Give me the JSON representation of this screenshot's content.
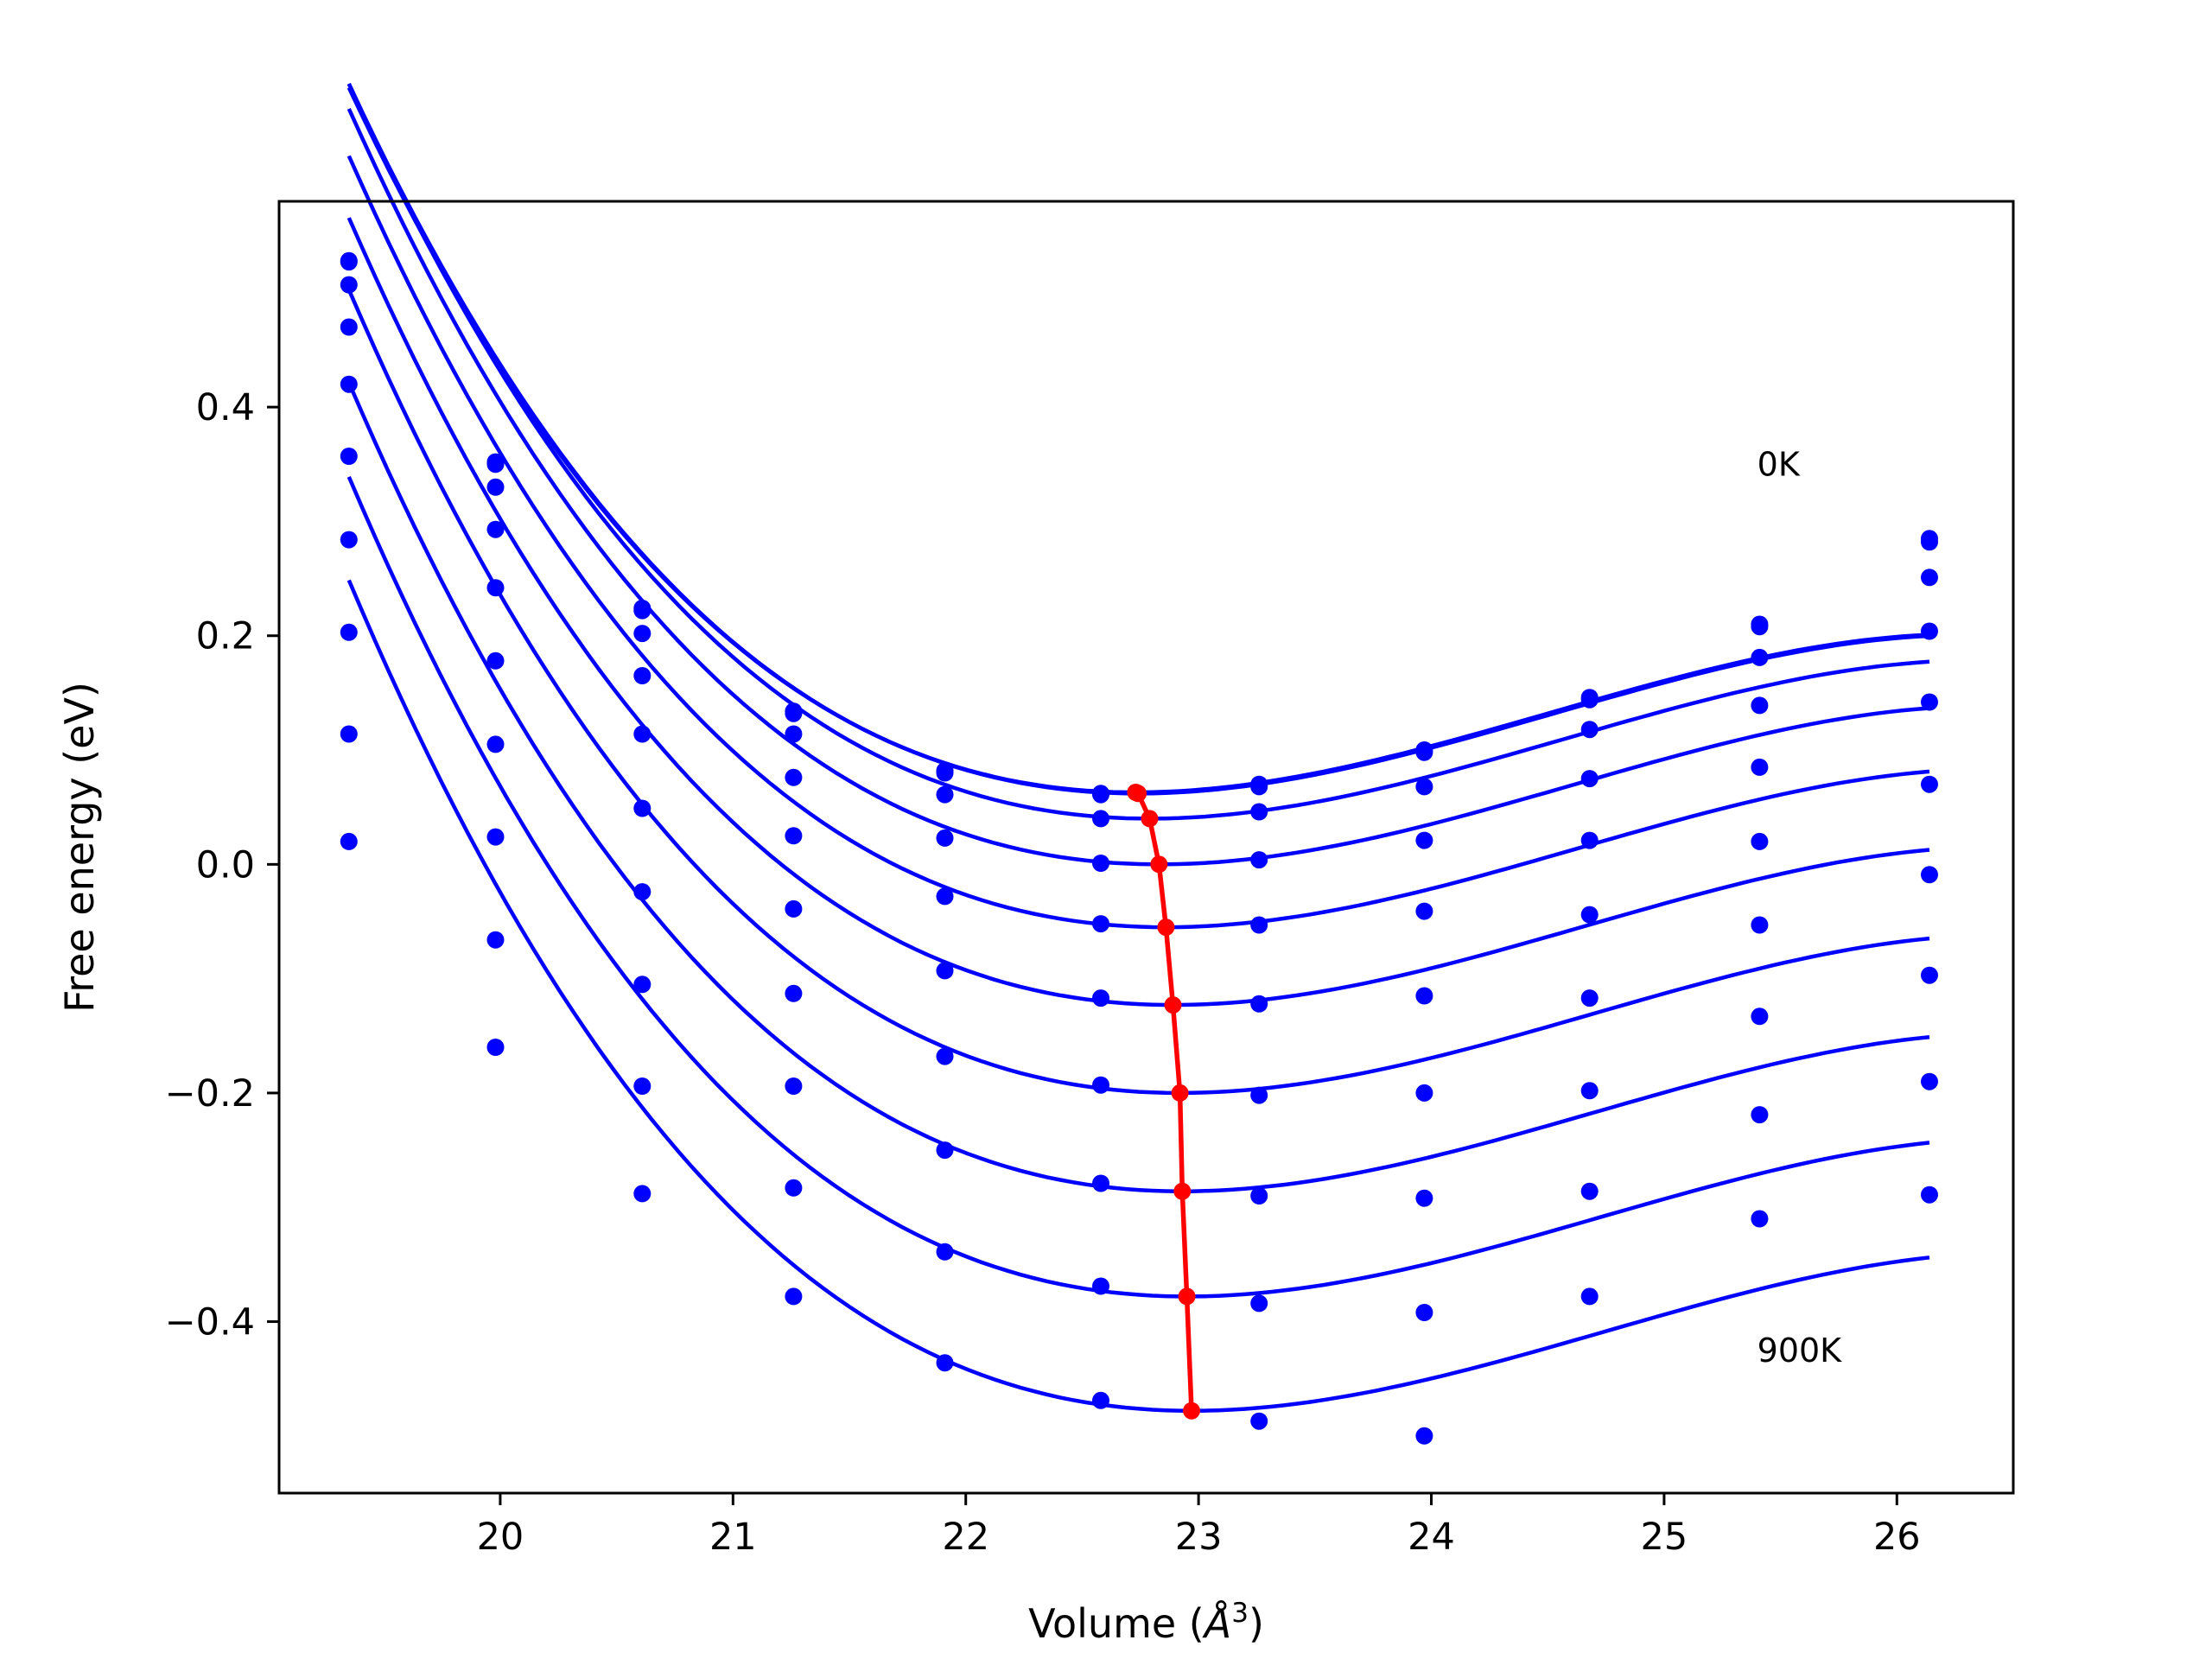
{
  "chart_data": {
    "type": "line",
    "xlabel": "Volume (",
    "xlabel_unit": "Å",
    "xlabel_exp": "3",
    "xlabel_close": ")",
    "ylabel": "Free energy (eV)",
    "xlim": [
      19.05,
      26.5
    ],
    "ylim": [
      -0.55,
      0.58
    ],
    "xticks": [
      20,
      21,
      22,
      23,
      24,
      25,
      26
    ],
    "xtick_labels": [
      "20",
      "21",
      "22",
      "23",
      "24",
      "25",
      "26"
    ],
    "yticks": [
      -0.4,
      -0.2,
      0.0,
      0.2,
      0.4
    ],
    "ytick_labels": [
      "−0.4",
      "−0.2",
      "0.0",
      "0.2",
      "0.4"
    ],
    "annotations": [
      {
        "text": "0K",
        "x": 25.4,
        "y": 0.34
      },
      {
        "text": "900K",
        "x": 25.4,
        "y": -0.435
      }
    ],
    "colors": {
      "curves": "#0000ff",
      "minima": "#ff0000",
      "frame": "#000000"
    },
    "x": [
      19.35,
      19.98,
      20.61,
      21.26,
      21.91,
      22.58,
      23.26,
      23.97,
      24.68,
      25.41,
      26.14
    ],
    "series": [
      {
        "points": [
          0.528,
          0.352,
          0.224,
          0.134,
          0.082,
          0.062,
          0.07,
          0.1,
          0.146,
          0.21,
          0.285
        ],
        "fit": {
          "vmin": 22.73,
          "fmin": 0.063,
          "a": 0.033,
          "b": -0.0062
        }
      },
      {
        "points": [
          0.527,
          0.35,
          0.222,
          0.132,
          0.08,
          0.061,
          0.068,
          0.098,
          0.144,
          0.208,
          0.282
        ],
        "fit": {
          "vmin": 22.74,
          "fmin": 0.062,
          "a": 0.033,
          "b": -0.0062
        }
      },
      {
        "points": [
          0.507,
          0.33,
          0.202,
          0.114,
          0.061,
          0.04,
          0.046,
          0.068,
          0.118,
          0.181,
          0.251
        ],
        "fit": {
          "vmin": 22.79,
          "fmin": 0.04,
          "a": 0.033,
          "b": -0.0062
        }
      },
      {
        "points": [
          0.47,
          0.293,
          0.165,
          0.076,
          0.023,
          0.001,
          0.004,
          0.021,
          0.075,
          0.139,
          0.204
        ],
        "fit": {
          "vmin": 22.83,
          "fmin": 0.0,
          "a": 0.033,
          "b": -0.0062
        }
      },
      {
        "points": [
          0.42,
          0.242,
          0.114,
          0.025,
          -0.028,
          -0.052,
          -0.053,
          -0.041,
          0.021,
          0.085,
          0.142
        ],
        "fit": {
          "vmin": 22.86,
          "fmin": -0.055,
          "a": 0.033,
          "b": -0.0062
        }
      },
      {
        "points": [
          0.357,
          0.178,
          0.049,
          -0.039,
          -0.093,
          -0.117,
          -0.122,
          -0.115,
          -0.044,
          0.02,
          0.07
        ],
        "fit": {
          "vmin": 22.89,
          "fmin": -0.123,
          "a": 0.033,
          "b": -0.0062
        }
      },
      {
        "points": [
          0.284,
          0.105,
          -0.024,
          -0.113,
          -0.168,
          -0.193,
          -0.202,
          -0.2,
          -0.117,
          -0.053,
          -0.009
        ],
        "fit": {
          "vmin": 22.92,
          "fmin": -0.2,
          "a": 0.033,
          "b": -0.0062
        }
      },
      {
        "points": [
          0.203,
          0.024,
          -0.105,
          -0.194,
          -0.25,
          -0.279,
          -0.29,
          -0.292,
          -0.198,
          -0.133,
          -0.097
        ],
        "fit": {
          "vmin": 22.93,
          "fmin": -0.286,
          "a": 0.033,
          "b": -0.0062
        }
      },
      {
        "points": [
          0.114,
          -0.066,
          -0.194,
          -0.283,
          -0.339,
          -0.369,
          -0.384,
          -0.392,
          -0.286,
          -0.219,
          -0.19
        ],
        "fit": {
          "vmin": 22.95,
          "fmin": -0.378,
          "a": 0.033,
          "b": -0.0062
        }
      },
      {
        "points": [
          0.02,
          -0.16,
          -0.288,
          -0.378,
          -0.436,
          -0.469,
          -0.487,
          -0.5,
          -0.378,
          -0.31,
          -0.289
        ],
        "fit": {
          "vmin": 22.97,
          "fmin": -0.478,
          "a": 0.033,
          "b": -0.0062
        }
      }
    ]
  }
}
